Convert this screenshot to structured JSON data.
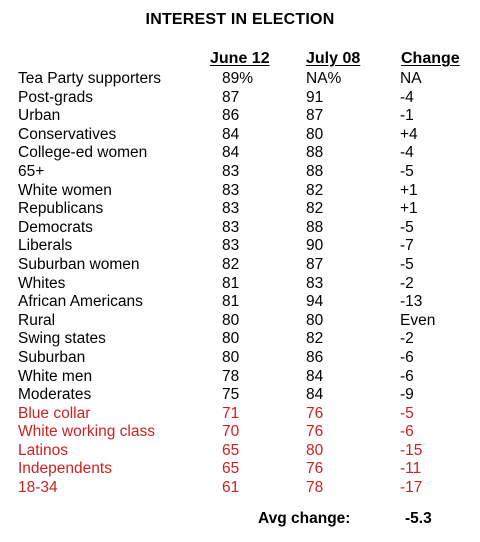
{
  "title": "INTEREST IN ELECTION",
  "chart_data": {
    "type": "table",
    "title": "INTEREST IN ELECTION",
    "columns": [
      "June 12",
      "July 08",
      "Change"
    ],
    "rows": [
      {
        "group": "Tea Party supporters",
        "june12": "89%",
        "july08": "NA%",
        "change": "NA",
        "highlight": false
      },
      {
        "group": "Post-grads",
        "june12": "87",
        "july08": "91",
        "change": "-4",
        "highlight": false
      },
      {
        "group": "Urban",
        "june12": "86",
        "july08": "87",
        "change": "-1",
        "highlight": false
      },
      {
        "group": "Conservatives",
        "june12": "84",
        "july08": "80",
        "change": "+4",
        "highlight": false
      },
      {
        "group": "College-ed women",
        "june12": "84",
        "july08": "88",
        "change": "-4",
        "highlight": false
      },
      {
        "group": "65+",
        "june12": "83",
        "july08": "88",
        "change": "-5",
        "highlight": false
      },
      {
        "group": "White women",
        "june12": "83",
        "july08": "82",
        "change": "+1",
        "highlight": false
      },
      {
        "group": "Republicans",
        "june12": "83",
        "july08": "82",
        "change": "+1",
        "highlight": false
      },
      {
        "group": "Democrats",
        "june12": "83",
        "july08": "88",
        "change": "-5",
        "highlight": false
      },
      {
        "group": "Liberals",
        "june12": "83",
        "july08": "90",
        "change": "-7",
        "highlight": false
      },
      {
        "group": "Suburban women",
        "june12": "82",
        "july08": "87",
        "change": "-5",
        "highlight": false
      },
      {
        "group": "Whites",
        "june12": "81",
        "july08": "83",
        "change": "-2",
        "highlight": false
      },
      {
        "group": "African Americans",
        "june12": "81",
        "july08": "94",
        "change": "-13",
        "highlight": false
      },
      {
        "group": "Rural",
        "june12": "80",
        "july08": "80",
        "change": "Even",
        "highlight": false
      },
      {
        "group": "Swing states",
        "june12": "80",
        "july08": "82",
        "change": "-2",
        "highlight": false
      },
      {
        "group": "Suburban",
        "june12": "80",
        "july08": "86",
        "change": "-6",
        "highlight": false
      },
      {
        "group": "White men",
        "june12": "78",
        "july08": "84",
        "change": "-6",
        "highlight": false
      },
      {
        "group": "Moderates",
        "june12": "75",
        "july08": "84",
        "change": "-9",
        "highlight": false
      },
      {
        "group": "Blue collar",
        "june12": "71",
        "july08": "76",
        "change": "-5",
        "highlight": true
      },
      {
        "group": "White working class",
        "june12": "70",
        "july08": "76",
        "change": "-6",
        "highlight": true
      },
      {
        "group": "Latinos",
        "june12": "65",
        "july08": "80",
        "change": "-15",
        "highlight": true
      },
      {
        "group": "Independents",
        "june12": "65",
        "july08": "76",
        "change": "-11",
        "highlight": true
      },
      {
        "group": "18-34",
        "june12": "61",
        "july08": "78",
        "change": "-17",
        "highlight": true
      }
    ],
    "avg_label": "Avg change:",
    "avg_value": "-5.3"
  },
  "colors": {
    "text": "#000000",
    "highlight": "#cc2222",
    "background": "#ffffff"
  }
}
